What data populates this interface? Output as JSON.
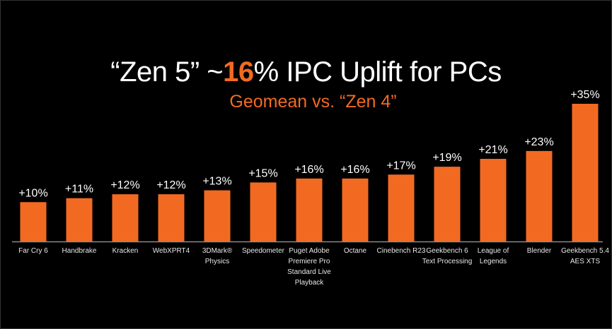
{
  "chart_data": {
    "type": "bar",
    "title_prefix": "“Zen 5” ~",
    "title_highlight": "16",
    "title_suffix": "% IPC Uplift for PCs",
    "subtitle": "Geomean  vs. “Zen 4”",
    "xlabel": "",
    "ylabel": "",
    "ylim": [
      0,
      35
    ],
    "grid": false,
    "categories": [
      [
        "Far Cry 6"
      ],
      [
        "Handbrake"
      ],
      [
        "Kracken"
      ],
      [
        "WebXPRT4"
      ],
      [
        "3DMark®",
        "Physics"
      ],
      [
        "Speedometer"
      ],
      [
        "Puget Adobe",
        "Premiere Pro",
        "Standard Live",
        "Playback"
      ],
      [
        "Octane"
      ],
      [
        "Cinebench R23"
      ],
      [
        "Geekbench 6",
        "Text Processing"
      ],
      [
        "League of",
        "Legends"
      ],
      [
        "Blender"
      ],
      [
        "Geekbench 5.4",
        "AES XTS"
      ]
    ],
    "values": [
      10,
      11,
      12,
      12,
      13,
      15,
      16,
      16,
      17,
      19,
      21,
      23,
      35
    ],
    "data_labels": [
      "+10%",
      "+11%",
      "+12%",
      "+12%",
      "+13%",
      "+15%",
      "+16%",
      "+16%",
      "+17%",
      "+19%",
      "+21%",
      "+23%",
      "+35%"
    ],
    "colors": {
      "bar": "#f26a22",
      "highlight": "#f26a22",
      "text": "#ffffff",
      "axis": "#8a8a8a",
      "background": "#000000"
    }
  }
}
